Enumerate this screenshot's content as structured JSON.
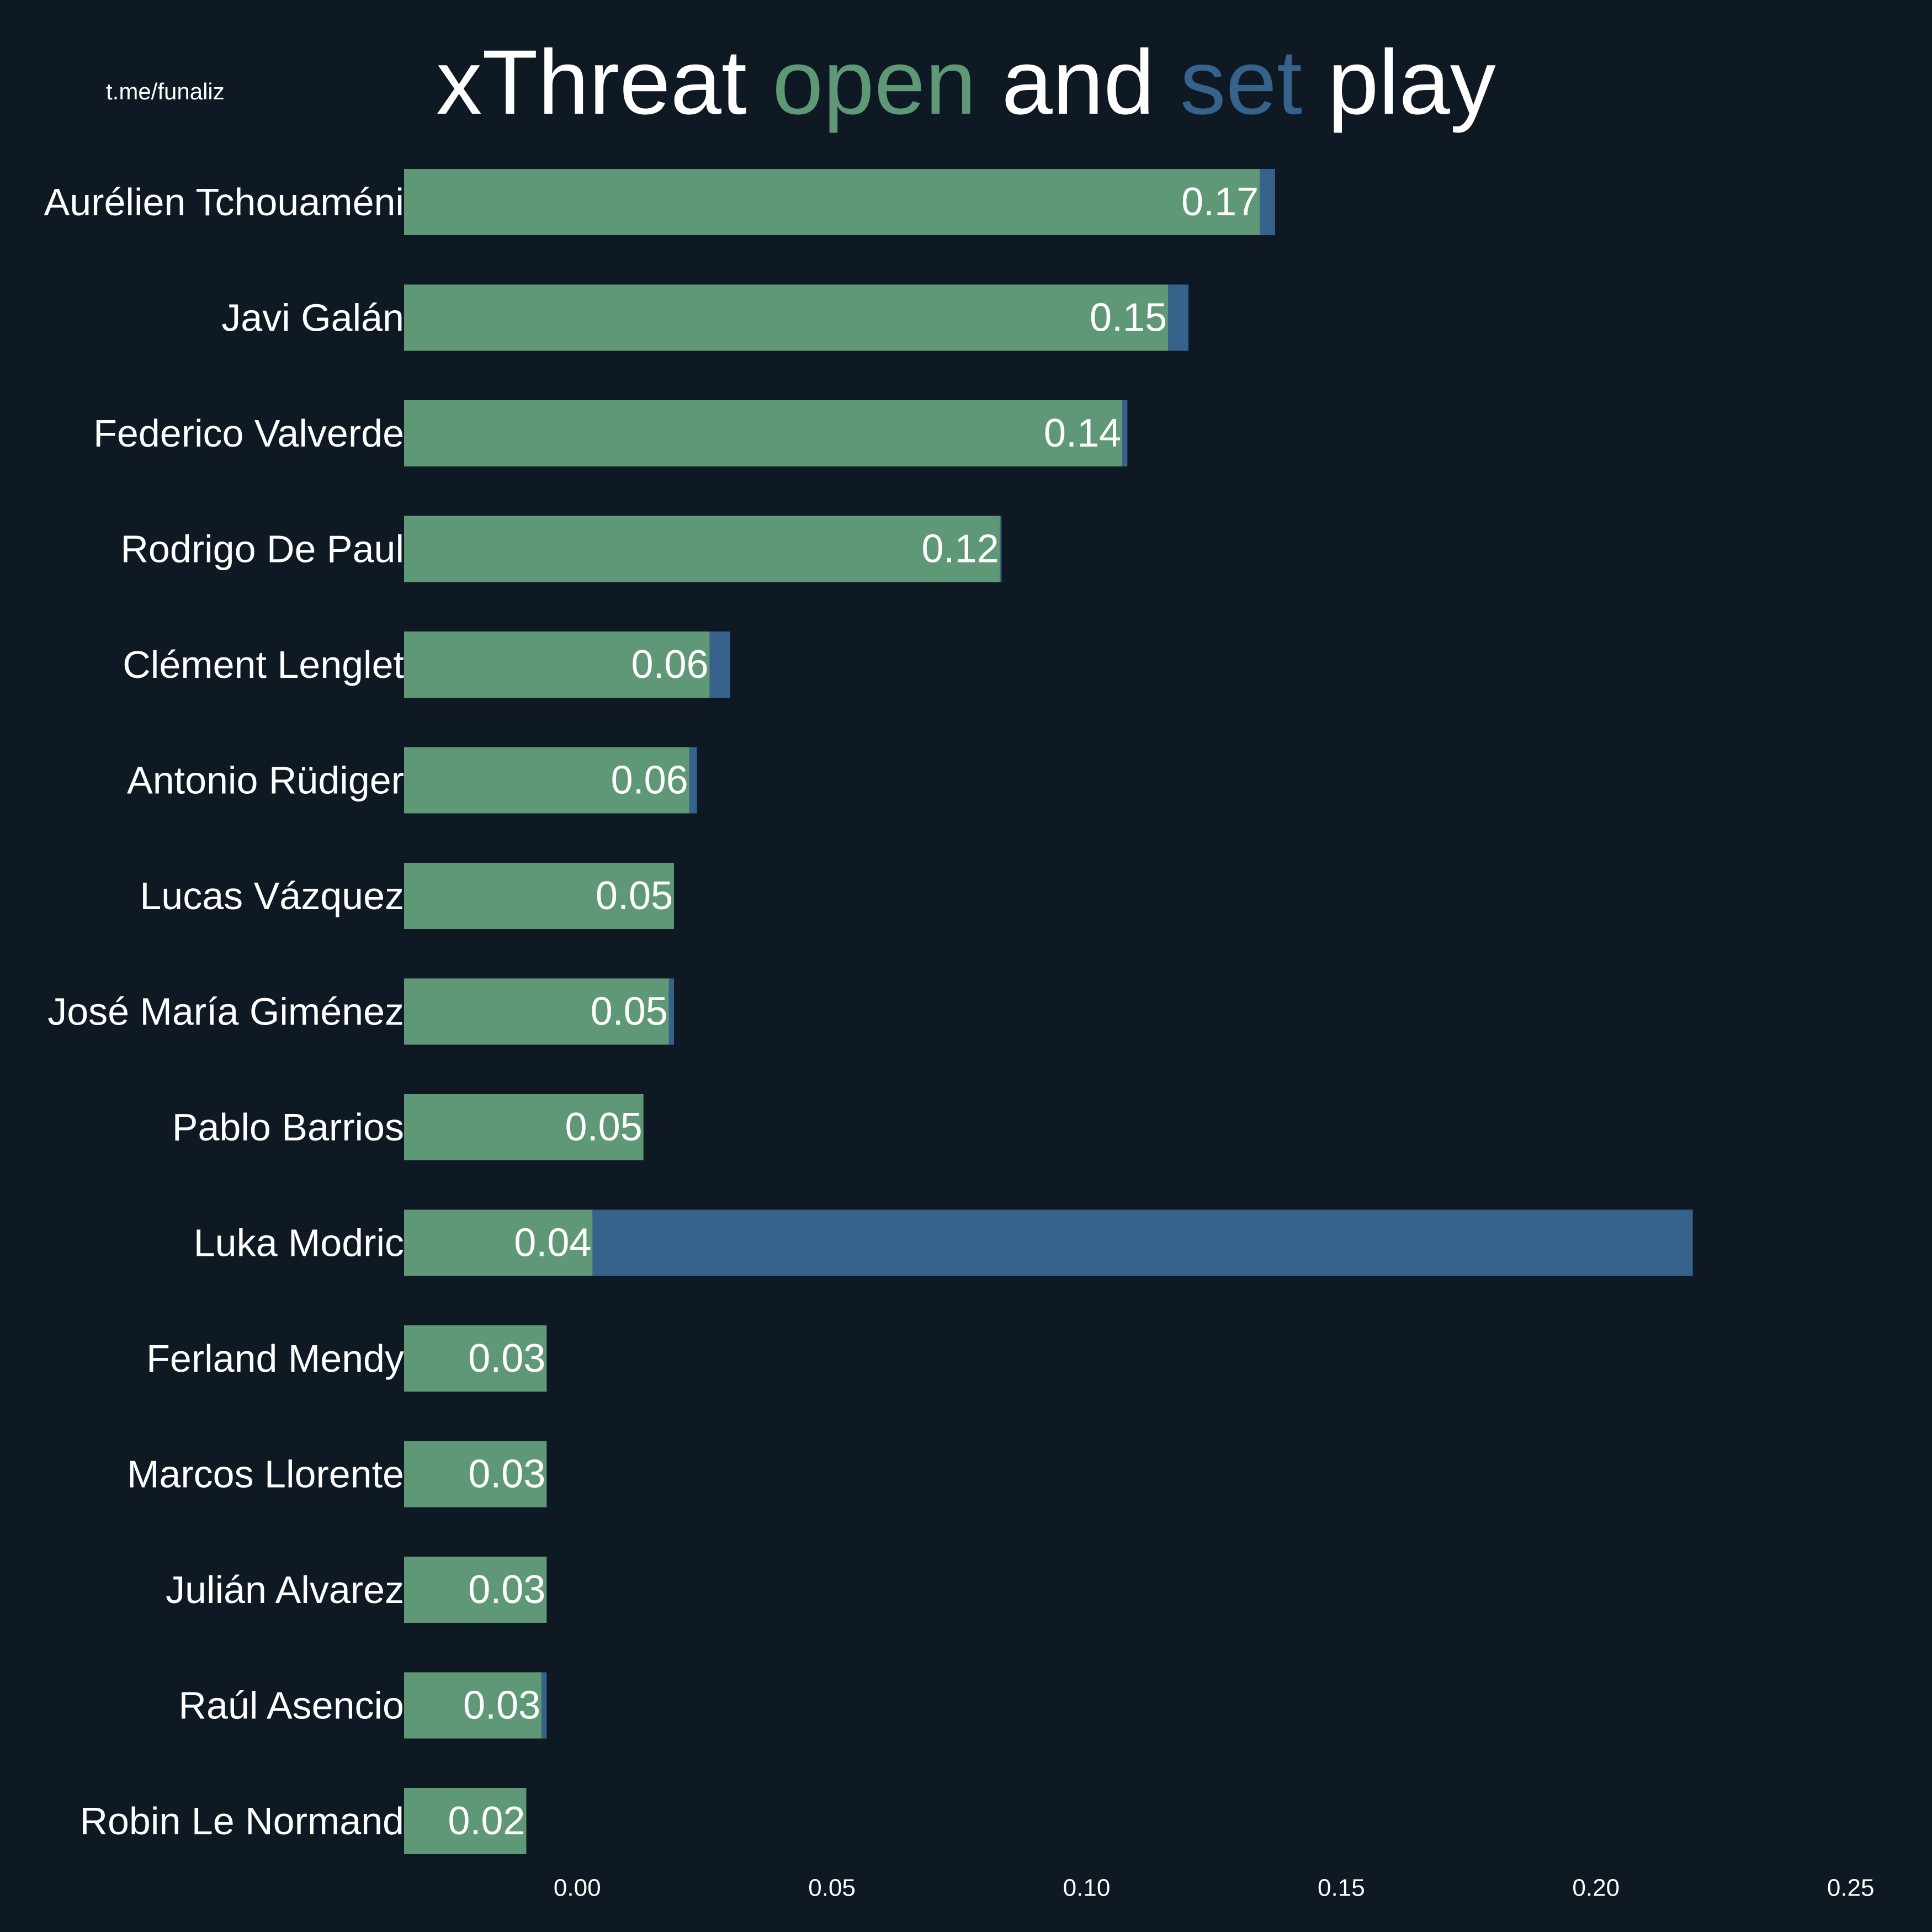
{
  "watermark": "t.me/funaliz",
  "title": {
    "part1": "xThreat ",
    "open_word": "open",
    "part2": " and ",
    "set_word": "set",
    "part3": " play"
  },
  "colors": {
    "background": "#0f1923",
    "open": "#5f9876",
    "set": "#37628c",
    "text": "#ffffff"
  },
  "chart_data": {
    "type": "bar",
    "orientation": "horizontal",
    "stacked": true,
    "categories": [
      "Aurélien Tchouaméni",
      "Javi Galán",
      "Federico Valverde",
      "Rodrigo De Paul",
      "Clément Lenglet",
      "Antonio Rüdiger",
      "Lucas Vázquez",
      "José María Giménez",
      "Pablo Barrios",
      "Luka Modric",
      "Ferland Mendy",
      "Marcos Llorente",
      "Julián Alvarez",
      "Raúl Asencio",
      "Robin Le Normand"
    ],
    "series": [
      {
        "name": "open",
        "values": [
          0.168,
          0.15,
          0.141,
          0.117,
          0.06,
          0.056,
          0.053,
          0.052,
          0.047,
          0.037,
          0.028,
          0.028,
          0.028,
          0.027,
          0.024
        ]
      },
      {
        "name": "set",
        "values": [
          0.003,
          0.004,
          0.001,
          0.0003,
          0.004,
          0.0015,
          0,
          0.001,
          0,
          0.216,
          0,
          0,
          0,
          0.001,
          0
        ]
      }
    ],
    "data_labels": [
      "0.17",
      "0.15",
      "0.14",
      "0.12",
      "0.06",
      "0.06",
      "0.05",
      "0.05",
      "0.05",
      "0.04",
      "0.03",
      "0.03",
      "0.03",
      "0.03",
      "0.02"
    ],
    "xticks": [
      "0.00",
      "0.05",
      "0.10",
      "0.15",
      "0.20",
      "0.25"
    ],
    "xlim": [
      -0.034,
      0.256
    ],
    "grid": false,
    "legend": "title color-coded"
  }
}
